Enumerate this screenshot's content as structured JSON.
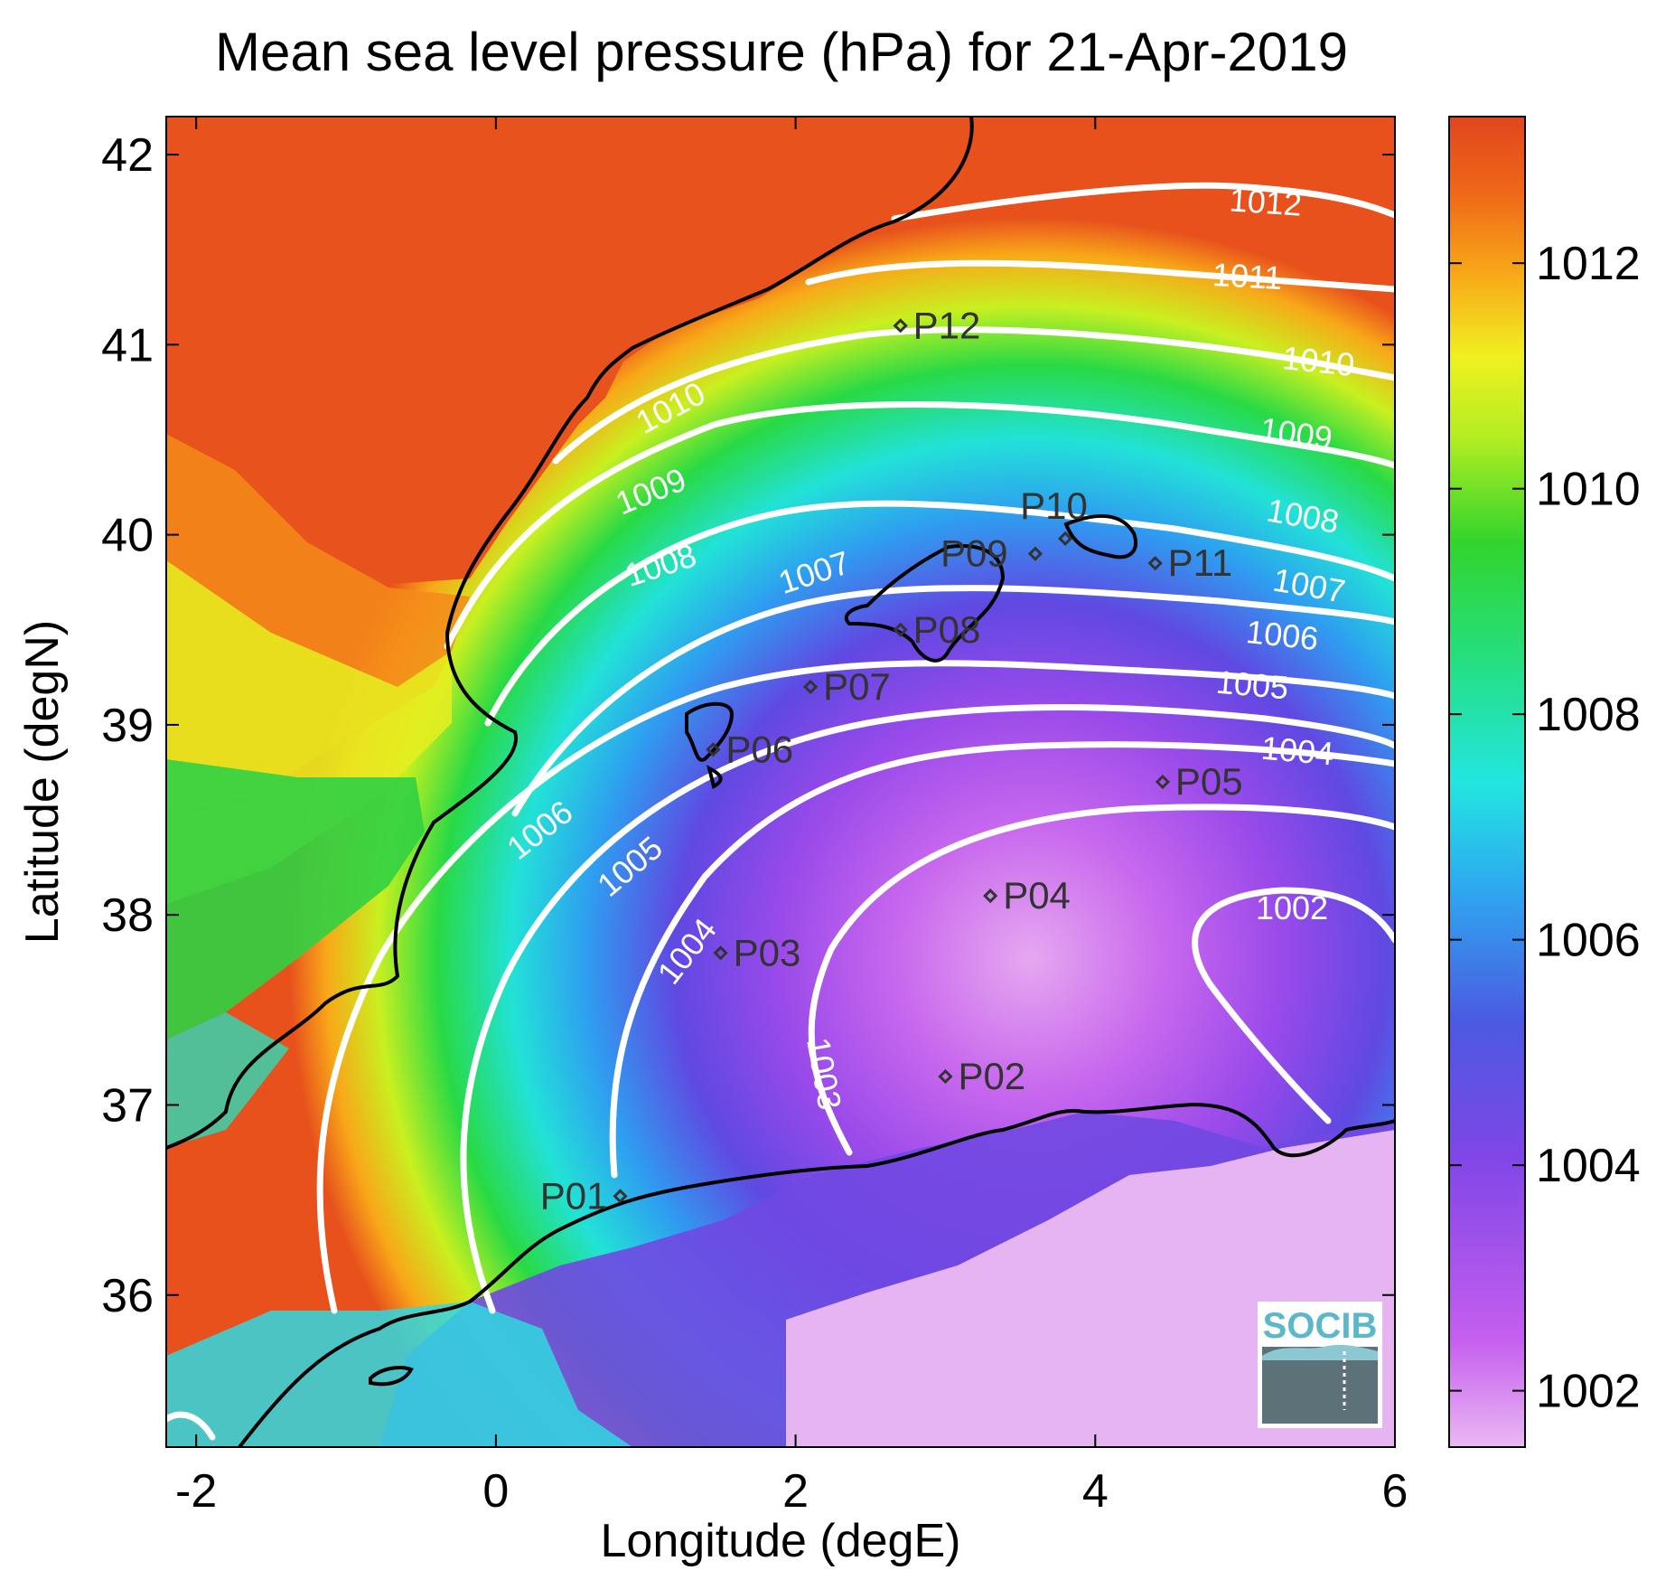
{
  "chart_data": {
    "type": "heatmap",
    "title": "Mean sea level pressure (hPa) for 21-Apr-2019",
    "xlabel": "Longitude (degE)",
    "ylabel": "Latitude (degN)",
    "xlim": [
      -2.2,
      6.0
    ],
    "ylim": [
      35.2,
      42.2
    ],
    "x_ticks": [
      "-2",
      "0",
      "2",
      "4",
      "6"
    ],
    "x_tick_values": [
      -2,
      0,
      2,
      4,
      6
    ],
    "y_ticks": [
      "42",
      "41",
      "40",
      "39",
      "38",
      "37",
      "36"
    ],
    "y_tick_values": [
      42,
      41,
      40,
      39,
      38,
      37,
      36
    ],
    "colorbar": {
      "range": [
        1001.5,
        1013.3
      ],
      "ticks": [
        "1012",
        "1010",
        "1008",
        "1006",
        "1004",
        "1002"
      ],
      "tick_values": [
        1012,
        1010,
        1008,
        1006,
        1004,
        1002
      ],
      "colors": [
        "#e8b4f0",
        "#c65ff0",
        "#8844e8",
        "#5050e0",
        "#2ea8f0",
        "#22e6e0",
        "#26de78",
        "#2ed62e",
        "#aaee22",
        "#f0f020",
        "#f8a818",
        "#f06818",
        "#e04a1e"
      ]
    },
    "contour_labels": [
      {
        "text": "1012",
        "value": 1012
      },
      {
        "text": "1011",
        "value": 1011
      },
      {
        "text": "1010",
        "value": 1010
      },
      {
        "text": "1010",
        "value": 1010
      },
      {
        "text": "1009",
        "value": 1009
      },
      {
        "text": "1009",
        "value": 1009
      },
      {
        "text": "1008",
        "value": 1008
      },
      {
        "text": "1008",
        "value": 1008
      },
      {
        "text": "1007",
        "value": 1007
      },
      {
        "text": "1007",
        "value": 1007
      },
      {
        "text": "1006",
        "value": 1006
      },
      {
        "text": "1006",
        "value": 1006
      },
      {
        "text": "1005",
        "value": 1005
      },
      {
        "text": "1005",
        "value": 1005
      },
      {
        "text": "1004",
        "value": 1004
      },
      {
        "text": "1004",
        "value": 1004
      },
      {
        "text": "1003",
        "value": 1003
      },
      {
        "text": "1002",
        "value": 1002
      }
    ],
    "stations": [
      {
        "name": "P01",
        "lon": 0.83,
        "lat": 36.52
      },
      {
        "name": "P02",
        "lon": 3.0,
        "lat": 37.15
      },
      {
        "name": "P03",
        "lon": 1.5,
        "lat": 37.8
      },
      {
        "name": "P04",
        "lon": 3.3,
        "lat": 38.1
      },
      {
        "name": "P05",
        "lon": 4.45,
        "lat": 38.7
      },
      {
        "name": "P06",
        "lon": 1.45,
        "lat": 38.87
      },
      {
        "name": "P07",
        "lon": 2.1,
        "lat": 39.2
      },
      {
        "name": "P08",
        "lon": 2.7,
        "lat": 39.5
      },
      {
        "name": "P09",
        "lon": 3.6,
        "lat": 39.9
      },
      {
        "name": "P10",
        "lon": 3.8,
        "lat": 39.98
      },
      {
        "name": "P11",
        "lon": 4.4,
        "lat": 39.85
      },
      {
        "name": "P12",
        "lon": 2.7,
        "lat": 41.1
      }
    ],
    "grid": false
  },
  "logo": {
    "text": "SOCIB"
  }
}
